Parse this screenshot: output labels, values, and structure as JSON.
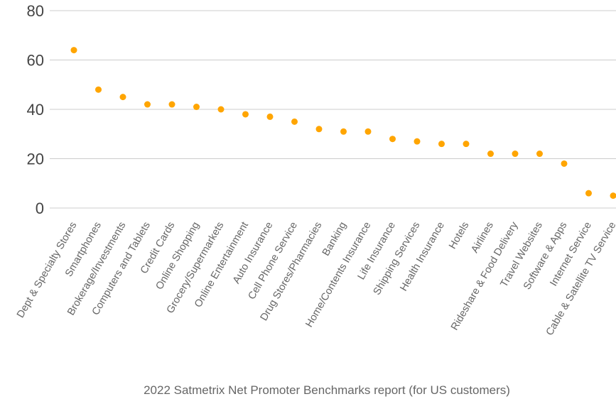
{
  "chart_data": {
    "type": "scatter",
    "title": "",
    "xlabel": "2022 Satmetrix Net Promoter Benchmarks report (for US customers)",
    "ylabel": "",
    "ylim": [
      0,
      80
    ],
    "yticks": [
      0,
      20,
      40,
      60,
      80
    ],
    "grid": "horizontal",
    "color": "#FFA500",
    "categories": [
      "Dept & Specialty Stores",
      "Smartphones",
      "Brokerage/Investments",
      "Computers and Tablets",
      "Credit Cards",
      "Online Shopping",
      "Grocery/Supermarkets",
      "Online Entertainment",
      "Auto Insurance",
      "Cell Phone Service",
      "Drug Stores/Pharmacies",
      "Banking",
      "Home/Contents Insurance",
      "Life Insurance",
      "Shipping Services",
      "Health Insurance",
      "Hotels",
      "Airlines",
      "Rideshare & Food Delivery",
      "Travel Websites",
      "Software & Apps",
      "Internet Service",
      "Cable & Satellite TV Service"
    ],
    "values": [
      64,
      48,
      45,
      42,
      42,
      41,
      40,
      38,
      37,
      35,
      32,
      31,
      31,
      28,
      27,
      26,
      26,
      22,
      22,
      22,
      18,
      6,
      5
    ]
  }
}
